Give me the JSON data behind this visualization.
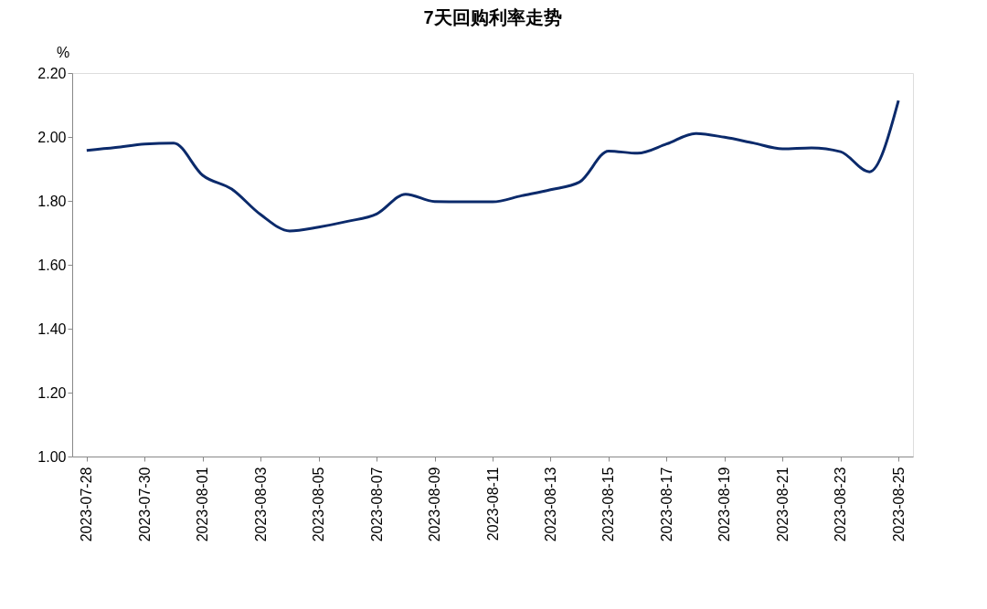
{
  "chart_data": {
    "type": "line",
    "title": "7天回购利率走势",
    "ylabel": "%",
    "x": [
      "2023-07-28",
      "2023-07-29",
      "2023-07-30",
      "2023-07-31",
      "2023-08-01",
      "2023-08-02",
      "2023-08-03",
      "2023-08-04",
      "2023-08-05",
      "2023-08-06",
      "2023-08-07",
      "2023-08-08",
      "2023-08-09",
      "2023-08-10",
      "2023-08-11",
      "2023-08-12",
      "2023-08-13",
      "2023-08-14",
      "2023-08-15",
      "2023-08-16",
      "2023-08-17",
      "2023-08-18",
      "2023-08-19",
      "2023-08-20",
      "2023-08-21",
      "2023-08-22",
      "2023-08-23",
      "2023-08-24",
      "2023-08-25"
    ],
    "series": [
      {
        "color": "#0b2a6b",
        "values": [
          1.958,
          1.967,
          1.978,
          1.981,
          1.88,
          1.837,
          1.757,
          1.706,
          1.718,
          1.736,
          1.759,
          1.821,
          1.798,
          1.797,
          1.797,
          1.816,
          1.835,
          1.859,
          1.956,
          1.949,
          1.978,
          2.011,
          1.999,
          1.981,
          1.963,
          1.966,
          1.954,
          1.891,
          2.114
        ]
      }
    ],
    "xlim": [
      "2023-07-27T12:00",
      "2023-08-25T12:00"
    ],
    "xticks": [
      "2023-07-28",
      "2023-07-30",
      "2023-08-01",
      "2023-08-03",
      "2023-08-05",
      "2023-08-07",
      "2023-08-09",
      "2023-08-11",
      "2023-08-13",
      "2023-08-15",
      "2023-08-17",
      "2023-08-19",
      "2023-08-21",
      "2023-08-23",
      "2023-08-25"
    ],
    "ylim": [
      1.0,
      2.2
    ],
    "yticks": [
      {
        "value": 1.0,
        "label": "1.00"
      },
      {
        "value": 1.2,
        "label": "1.20"
      },
      {
        "value": 1.4,
        "label": "1.40"
      },
      {
        "value": 1.6,
        "label": "1.60"
      },
      {
        "value": 1.8,
        "label": "1.80"
      },
      {
        "value": 2.0,
        "label": "2.00"
      },
      {
        "value": 2.2,
        "label": "2.20"
      }
    ],
    "grid": false,
    "legend": false,
    "marker": "none",
    "line_style": "solid"
  }
}
